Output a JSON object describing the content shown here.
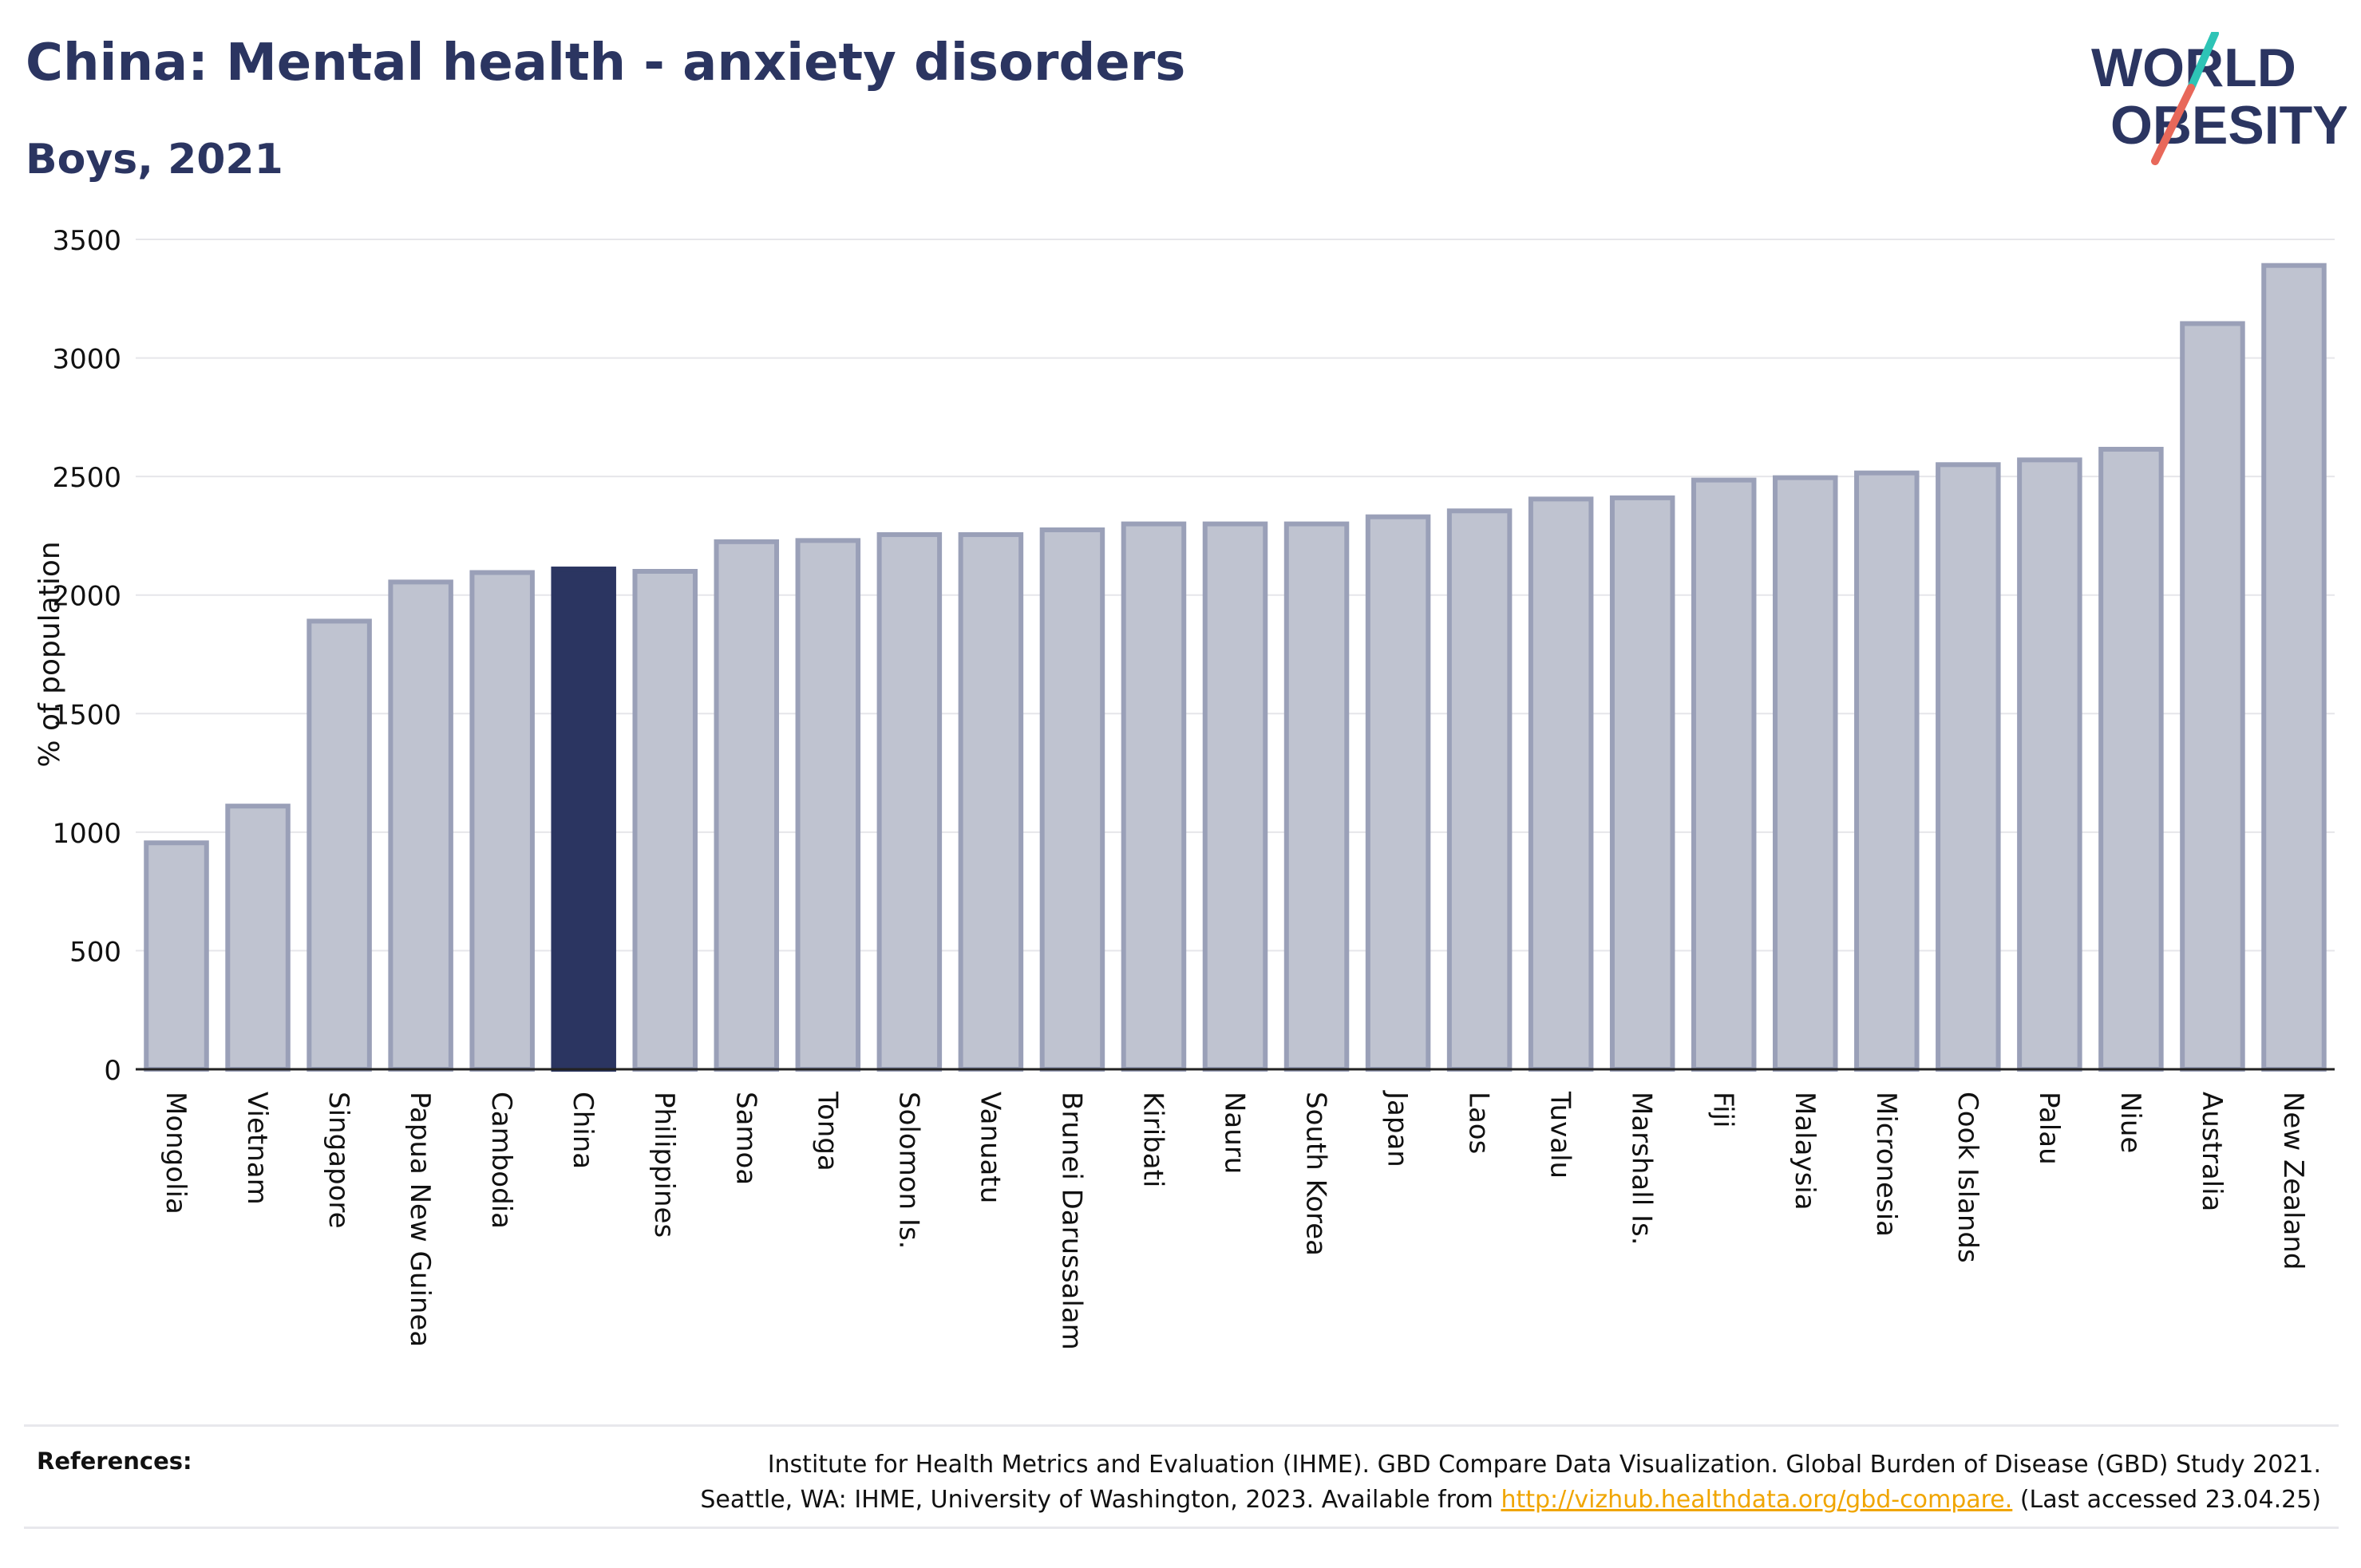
{
  "header": {
    "title": "China: Mental health - anxiety disorders",
    "subtitle": "Boys, 2021"
  },
  "logo": {
    "line1": "WORLD",
    "line2": "OBESITY",
    "colors": {
      "text": "#2b3561",
      "slash_teal": "#2ec4b6",
      "slash_red": "#e8685a"
    }
  },
  "chart_data": {
    "type": "bar",
    "ylabel": "% of population",
    "xlabel": "",
    "ylim": [
      0,
      3500
    ],
    "yticks": [
      0,
      500,
      1000,
      1500,
      2000,
      2500,
      3000,
      3500
    ],
    "grid": true,
    "highlight": "China",
    "colors": {
      "bar": "#bfc3d0",
      "bar_edge": "#9aa0b8",
      "highlight": "#2b3561",
      "grid": "#e6e6ea"
    },
    "categories": [
      "Mongolia",
      "Vietnam",
      "Singapore",
      "Papua New Guinea",
      "Cambodia",
      "China",
      "Philippines",
      "Samoa",
      "Tonga",
      "Solomon Is.",
      "Vanuatu",
      "Brunei Darussalam",
      "Kiribati",
      "Nauru",
      "South Korea",
      "Japan",
      "Laos",
      "Tuvalu",
      "Marshall Is.",
      "Fiji",
      "Malaysia",
      "Micronesia",
      "Cook Islands",
      "Palau",
      "Niue",
      "Australia",
      "New Zealand"
    ],
    "values": [
      955,
      1110,
      1890,
      2055,
      2095,
      2110,
      2100,
      2225,
      2230,
      2255,
      2255,
      2275,
      2300,
      2300,
      2300,
      2330,
      2355,
      2405,
      2410,
      2485,
      2495,
      2515,
      2550,
      2570,
      2615,
      3145,
      3390
    ]
  },
  "references": {
    "label": "References:",
    "line1": "Institute for Health Metrics and Evaluation (IHME). GBD Compare Data Visualization. Global Burden of Disease (GBD) Study 2021.",
    "line2_prefix": "Seattle, WA: IHME, University of Washington, 2023. Available from ",
    "link": "http://vizhub.healthdata.org/gbd-compare.",
    "line2_suffix": " (Last accessed 23.04.25)"
  }
}
